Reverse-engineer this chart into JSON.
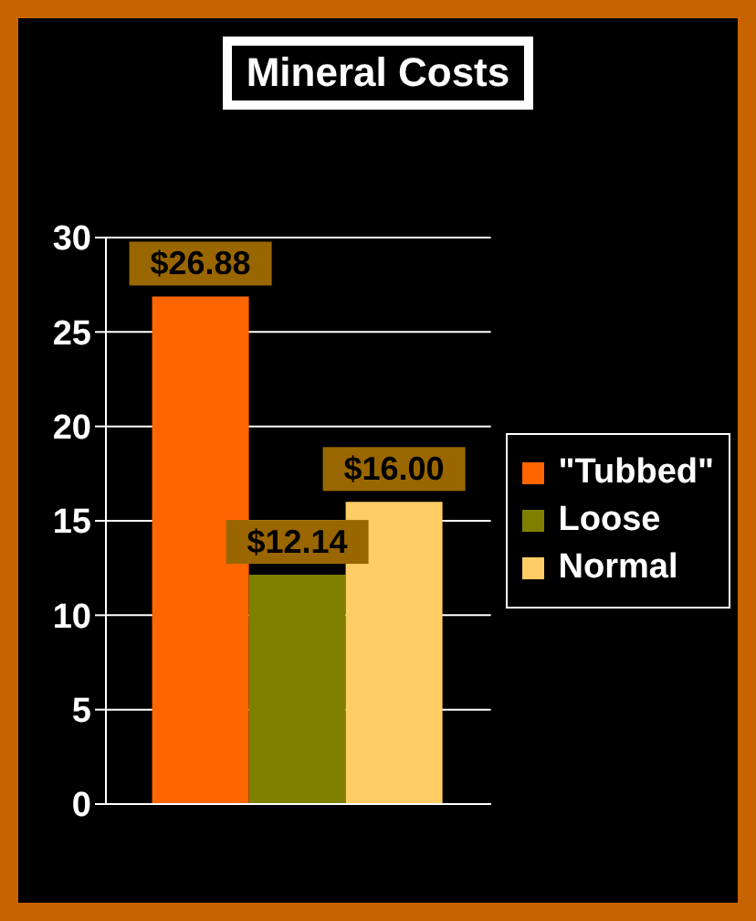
{
  "chart_data": {
    "type": "bar",
    "title": "Mineral Costs",
    "categories": [
      null
    ],
    "series": [
      {
        "name": "\"Tubbed\"",
        "color": "#ff6600",
        "values": [
          26.88
        ],
        "value_labels": [
          "$26.88"
        ]
      },
      {
        "name": "Loose",
        "color": "#808000",
        "values": [
          12.14
        ],
        "value_labels": [
          "$12.14"
        ]
      },
      {
        "name": "Normal",
        "color": "#ffcc66",
        "values": [
          16.0
        ],
        "value_labels": [
          "$16.00"
        ]
      }
    ],
    "ylim": [
      0,
      30
    ],
    "yticks": [
      0,
      5,
      10,
      15,
      20,
      25,
      30
    ],
    "grid": "y",
    "legend": "right"
  }
}
